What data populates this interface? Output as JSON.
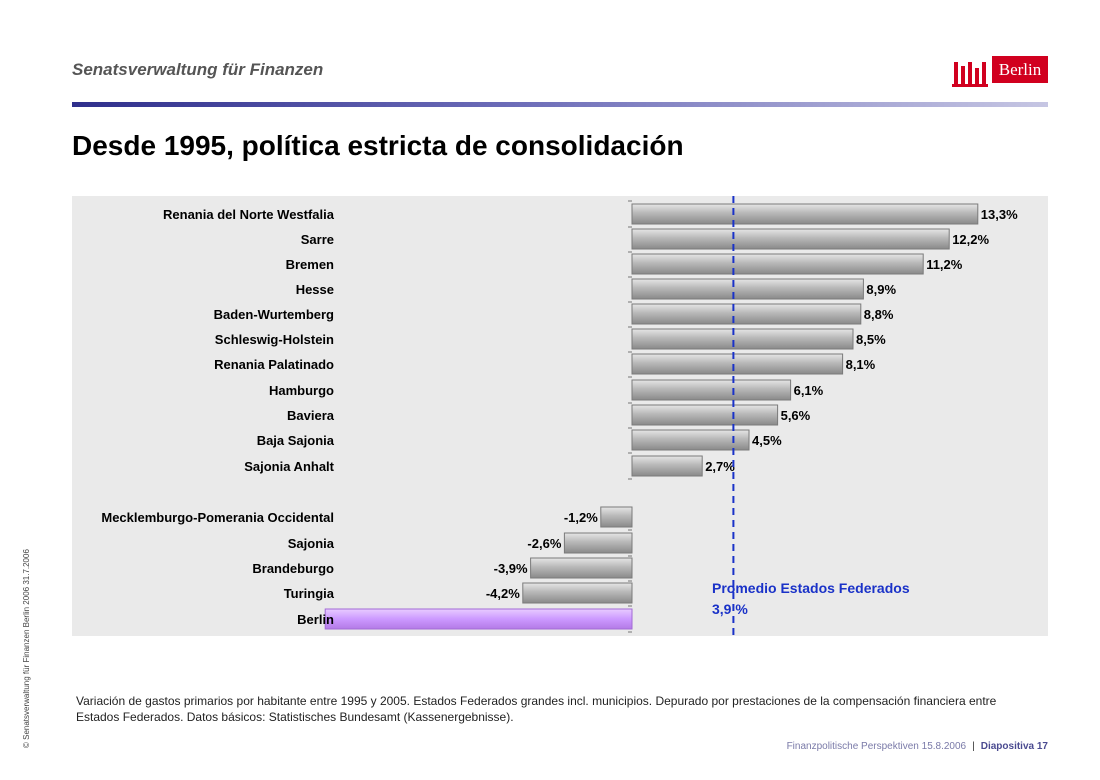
{
  "header": {
    "organization": "Senatsverwaltung für Finanzen",
    "logo_text": "Berlin"
  },
  "slide": {
    "title": "Desde 1995, política estricta de consolidación"
  },
  "chart_data": {
    "type": "bar",
    "orientation": "horizontal",
    "categories": [
      "Renania del Norte Westfalia",
      "Sarre",
      "Bremen",
      "Hesse",
      "Baden-Wurtemberg",
      "Schleswig-Holstein",
      "Renania Palatinado",
      "Hamburgo",
      "Baviera",
      "Baja Sajonia",
      "Sajonia Anhalt",
      "Mecklemburgo-Pomerania Occidental",
      "Sajonia",
      "Brandeburgo",
      "Turingia",
      "Berlin"
    ],
    "values": [
      13.3,
      12.2,
      11.2,
      8.9,
      8.8,
      8.5,
      8.1,
      6.1,
      5.6,
      4.5,
      2.7,
      -1.2,
      -2.6,
      -3.9,
      -4.2,
      -11.8
    ],
    "value_labels": [
      "13,3%",
      "12,2%",
      "11,2%",
      "8,9%",
      "8,8%",
      "8,5%",
      "8,1%",
      "6,1%",
      "5,6%",
      "4,5%",
      "2,7%",
      "-1,2%",
      "-2,6%",
      "-3,9%",
      "-4,2%",
      ""
    ],
    "average": {
      "value": 3.9,
      "label": "Promedio Estados Federados",
      "value_label": "3,9 %"
    },
    "colors": {
      "bar": "#a8a8a8",
      "highlight": "#cc99ff",
      "average_line": "#1a32c8",
      "background": "#eaeaea"
    },
    "title": "",
    "xlabel": "",
    "ylabel": ""
  },
  "footnote": "Variación de gastos primarios por habitante entre 1995 y 2005. Estados Federados grandes incl. municipios. Depurado por prestaciones de la compensación financiera entre Estados Federados. Datos básicos: Statistisches Bundesamt (Kassenergebnisse).",
  "sidebar_text": "© Senatsverwaltung für Finanzen Berlin 2006    31.7.2006",
  "footer": {
    "presentation": "Finanzpolitische Perspektiven 15.8.2006",
    "slide_number": "Diapositiva 17"
  }
}
